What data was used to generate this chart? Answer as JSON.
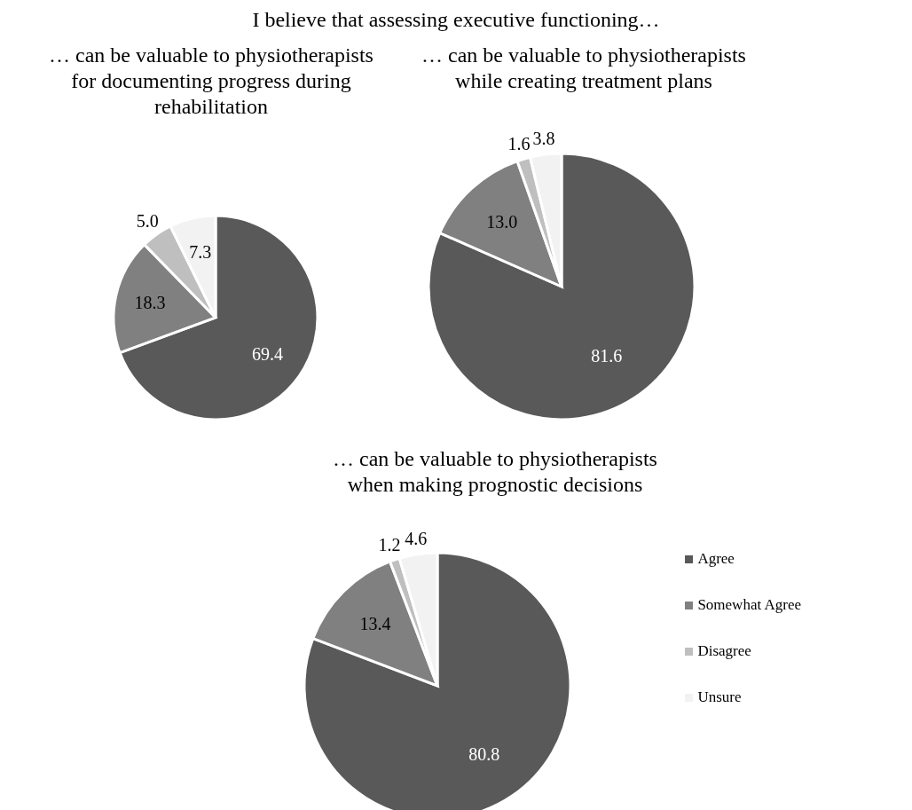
{
  "chart_data": [
    {
      "type": "other",
      "title": "I believe that assessing executive functioning…"
    },
    {
      "type": "pie",
      "title": "… can be valuable to physiotherapists for documenting progress during rehabilitation",
      "categories": [
        null,
        null,
        null,
        null
      ],
      "values": [
        69.4,
        18.3,
        5.0,
        7.3
      ],
      "value_labels": [
        "69.4",
        "18.3",
        "5.0",
        "7.3"
      ],
      "colors": [
        "#595959",
        "#808080",
        "#bfbfbf",
        "#f2f2f2"
      ],
      "legend": false
    },
    {
      "type": "pie",
      "title": "… can be valuable to physiotherapists while creating treatment plans",
      "categories": [
        null,
        null,
        null,
        null
      ],
      "values": [
        81.6,
        13.0,
        1.6,
        3.8
      ],
      "value_labels": [
        "81.6",
        "13.0",
        "1.6",
        "3.8"
      ],
      "colors": [
        "#595959",
        "#808080",
        "#bfbfbf",
        "#f2f2f2"
      ],
      "legend": false
    },
    {
      "type": "pie",
      "title": "… can be valuable to physiotherapists when making prognostic decisions",
      "categories": [
        "Agree",
        "Somewhat Agree",
        "Disagree",
        "Unsure"
      ],
      "values": [
        80.8,
        13.4,
        1.2,
        4.6
      ],
      "value_labels": [
        "80.8",
        "13.4",
        "1.2",
        "4.6"
      ],
      "colors": [
        "#595959",
        "#808080",
        "#bfbfbf",
        "#f2f2f2"
      ],
      "legend": "right"
    }
  ]
}
